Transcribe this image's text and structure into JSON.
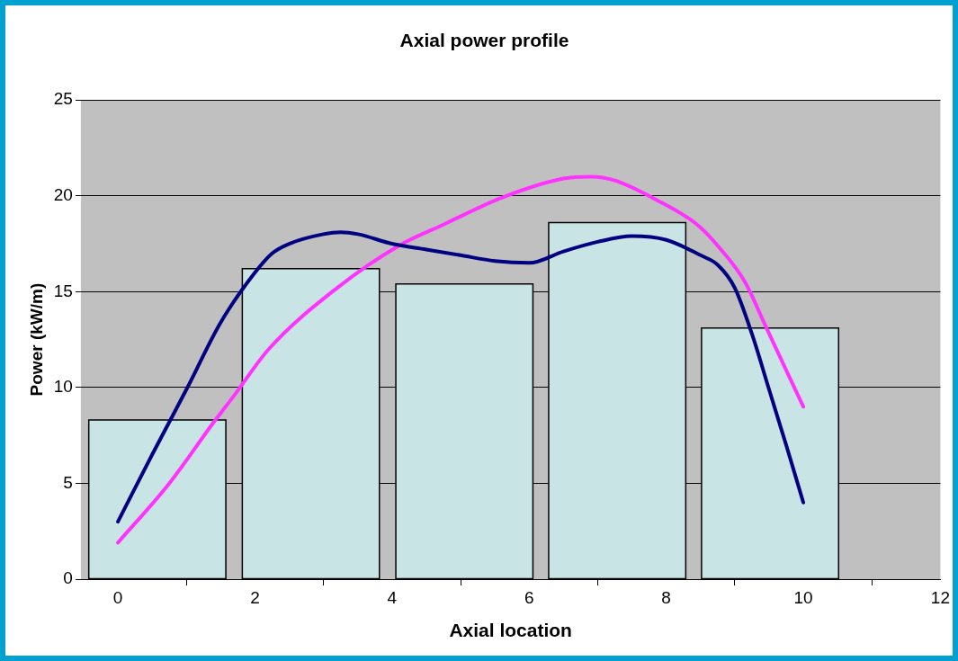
{
  "chart_data": {
    "type": "histogram",
    "title": "Axial power profile",
    "xlabel": "Axial location",
    "ylabel": "Power (kW/m)",
    "bins": [
      -0.54,
      1.69,
      3.94,
      6.17,
      8.4,
      10.63
    ],
    "values": [
      8.3,
      16.2,
      15.4,
      18.6,
      13.1
    ],
    "color": "#c8e4e4",
    "series": [
      {
        "type": "line",
        "color": "#000080",
        "x": [
          0,
          0.5,
          0.75,
          1,
          1.5,
          2,
          2.25,
          2.5,
          3,
          3.25,
          3.5,
          4,
          4.5,
          5,
          5.5,
          6,
          6.5,
          7,
          7.5,
          8,
          8.5,
          8.75,
          9,
          9.25,
          9.5,
          9.75,
          10
        ],
        "values": [
          3.0,
          6.5,
          8.2,
          9.9,
          13.4,
          16.0,
          17.0,
          17.5,
          18.0,
          18.1,
          18.0,
          17.5,
          17.2,
          16.9,
          16.6,
          16.5,
          17.1,
          17.6,
          17.9,
          17.7,
          16.9,
          16.4,
          15.2,
          12.8,
          9.9,
          7.0,
          4.0
        ]
      },
      {
        "type": "line",
        "color": "#ff33ff",
        "x": [
          0,
          0.75,
          1.4,
          1.7,
          2.2,
          3.2,
          4.1,
          4.75,
          5.6,
          6.5,
          6.9,
          7.25,
          7.85,
          8.45,
          8.75,
          9.15,
          9.45,
          10
        ],
        "values": [
          1.9,
          5.0,
          8.2,
          9.6,
          12.0,
          15.2,
          17.4,
          18.5,
          19.9,
          20.9,
          21.0,
          20.8,
          19.8,
          18.5,
          17.4,
          15.5,
          13.2,
          9.0
        ]
      }
    ],
    "xlim": [
      -0.54,
      12
    ],
    "xticks": [
      0,
      2,
      4,
      6,
      8,
      10,
      12
    ],
    "ylim": [
      0,
      25
    ],
    "yticks": [
      0,
      5,
      10,
      15,
      20,
      25
    ],
    "grid": "y",
    "legend": false,
    "marker": "none",
    "line_style": "solid"
  }
}
